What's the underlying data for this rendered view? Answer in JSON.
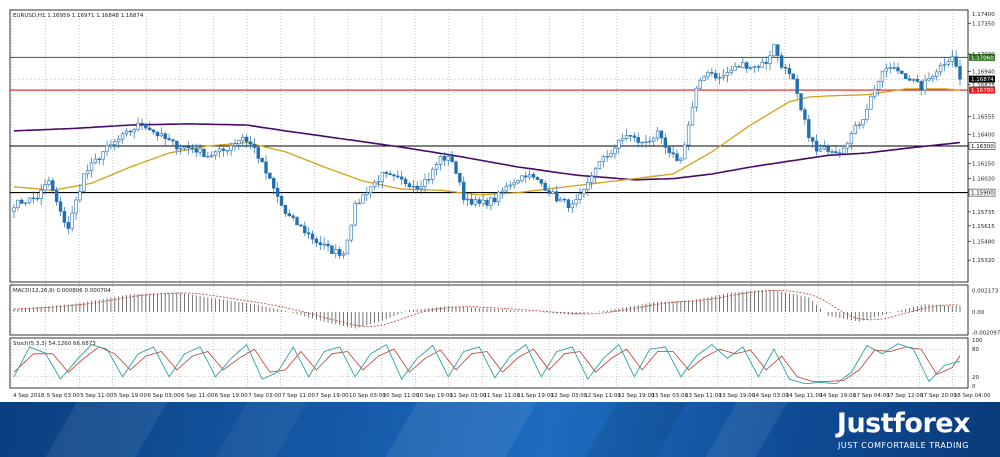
{
  "chart_data": {
    "type": "candlestick",
    "header": "EURUSD,H1  1.16959 1.16971 1.16848 1.16874",
    "colors": {
      "bull": "#1f6fb2",
      "bear": "#1f6fb2",
      "ma_fast": "#d4a017",
      "ma_slow": "#4b0a6b",
      "line_green": "#3a7a2a",
      "line_red": "#e01b1b",
      "line_black": "#000000",
      "macd_hist": "#555555",
      "macd_signal": "#c0392b",
      "stoch_main": "#2aa39a",
      "stoch_signal": "#c0392b"
    },
    "ylim": [
      1.1515,
      1.1745
    ],
    "price_ticks": [
      "1.17350",
      "1.17090",
      "1.16940",
      "1.16825",
      "1.16555",
      "1.16400",
      "1.16150",
      "1.16020",
      "1.15735",
      "1.15615",
      "1.15480",
      "1.15320"
    ],
    "levels": [
      {
        "name": "resistance-green",
        "value": 1.1706,
        "label": "1.17060",
        "color": "#3a7a2a"
      },
      {
        "name": "resistance-red",
        "value": 1.1678,
        "label": "1.16780",
        "color": "#e01b1b"
      },
      {
        "name": "support-black-1",
        "value": 1.163,
        "label": "1.16300",
        "color": "#000000"
      },
      {
        "name": "support-black-2",
        "value": 1.159,
        "label": "1.15900",
        "color": "#000000"
      }
    ],
    "current_price": {
      "value": 1.16874,
      "label": "1.16874"
    },
    "top_label": "1.17400",
    "x_labels": [
      "4 Sep 2018",
      "5 Sep 03:00",
      "5 Sep 11:00",
      "5 Sep 19:00",
      "6 Sep 03:00",
      "6 Sep 11:00",
      "6 Sep 19:00",
      "7 Sep 03:00",
      "7 Sep 11:00",
      "7 Sep 19:00",
      "10 Sep 03:00",
      "10 Sep 11:00",
      "10 Sep 19:00",
      "11 Sep 03:00",
      "11 Sep 11:00",
      "11 Sep 19:00",
      "12 Sep 03:00",
      "12 Sep 11:00",
      "12 Sep 19:00",
      "13 Sep 03:00",
      "13 Sep 11:00",
      "13 Sep 19:00",
      "14 Sep 03:00",
      "14 Sep 11:00",
      "14 Sep 19:00",
      "17 Sep 04:00",
      "17 Sep 12:00",
      "17 Sep 20:00",
      "18 Sep 04:00"
    ],
    "close_anchors": [
      [
        0,
        1.158
      ],
      [
        6,
        1.1586
      ],
      [
        9,
        1.16
      ],
      [
        12,
        1.1572
      ],
      [
        14,
        1.156
      ],
      [
        18,
        1.1605
      ],
      [
        23,
        1.1625
      ],
      [
        28,
        1.1638
      ],
      [
        33,
        1.165
      ],
      [
        37,
        1.164
      ],
      [
        42,
        1.163
      ],
      [
        46,
        1.1628
      ],
      [
        50,
        1.1622
      ],
      [
        54,
        1.1626
      ],
      [
        59,
        1.1638
      ],
      [
        62,
        1.1628
      ],
      [
        66,
        1.16
      ],
      [
        70,
        1.1572
      ],
      [
        74,
        1.156
      ],
      [
        78,
        1.1548
      ],
      [
        82,
        1.154
      ],
      [
        85,
        1.1538
      ],
      [
        88,
        1.1578
      ],
      [
        91,
        1.1592
      ],
      [
        95,
        1.1605
      ],
      [
        100,
        1.16
      ],
      [
        104,
        1.1596
      ],
      [
        107,
        1.1603
      ],
      [
        110,
        1.162
      ],
      [
        113,
        1.1618
      ],
      [
        116,
        1.1586
      ],
      [
        120,
        1.158
      ],
      [
        124,
        1.1584
      ],
      [
        128,
        1.1598
      ],
      [
        132,
        1.1606
      ],
      [
        136,
        1.1598
      ],
      [
        140,
        1.1585
      ],
      [
        144,
        1.1578
      ],
      [
        147,
        1.159
      ],
      [
        150,
        1.1612
      ],
      [
        154,
        1.1625
      ],
      [
        158,
        1.164
      ],
      [
        162,
        1.1632
      ],
      [
        166,
        1.164
      ],
      [
        169,
        1.1622
      ],
      [
        172,
        1.1618
      ],
      [
        174,
        1.1648
      ],
      [
        176,
        1.1678
      ],
      [
        179,
        1.1695
      ],
      [
        182,
        1.1688
      ],
      [
        185,
        1.1695
      ],
      [
        188,
        1.17
      ],
      [
        191,
        1.1698
      ],
      [
        194,
        1.1702
      ],
      [
        196,
        1.1716
      ],
      [
        198,
        1.17
      ],
      [
        201,
        1.1685
      ],
      [
        203,
        1.166
      ],
      [
        205,
        1.164
      ],
      [
        207,
        1.1625
      ],
      [
        210,
        1.1628
      ],
      [
        213,
        1.1626
      ],
      [
        216,
        1.164
      ],
      [
        219,
        1.1655
      ],
      [
        222,
        1.168
      ],
      [
        225,
        1.1697
      ],
      [
        228,
        1.1695
      ],
      [
        231,
        1.1688
      ],
      [
        234,
        1.168
      ],
      [
        237,
        1.1692
      ],
      [
        240,
        1.1702
      ],
      [
        242,
        1.1708
      ],
      [
        244,
        1.1687
      ]
    ],
    "ma_fast_anchors": [
      [
        0,
        1.1595
      ],
      [
        10,
        1.1592
      ],
      [
        20,
        1.1598
      ],
      [
        30,
        1.1612
      ],
      [
        40,
        1.1624
      ],
      [
        50,
        1.163
      ],
      [
        60,
        1.1633
      ],
      [
        70,
        1.1625
      ],
      [
        80,
        1.1612
      ],
      [
        90,
        1.16
      ],
      [
        100,
        1.1593
      ],
      [
        110,
        1.1592
      ],
      [
        120,
        1.1588
      ],
      [
        130,
        1.159
      ],
      [
        140,
        1.1594
      ],
      [
        150,
        1.1598
      ],
      [
        160,
        1.1602
      ],
      [
        170,
        1.1606
      ],
      [
        180,
        1.1625
      ],
      [
        190,
        1.1648
      ],
      [
        200,
        1.1668
      ],
      [
        205,
        1.1672
      ],
      [
        210,
        1.1673
      ],
      [
        220,
        1.1674
      ],
      [
        230,
        1.1679
      ],
      [
        240,
        1.1679
      ],
      [
        244,
        1.1678
      ]
    ],
    "ma_slow_anchors": [
      [
        0,
        1.1643
      ],
      [
        15,
        1.1645
      ],
      [
        30,
        1.1648
      ],
      [
        45,
        1.1649
      ],
      [
        60,
        1.1648
      ],
      [
        70,
        1.1643
      ],
      [
        85,
        1.1636
      ],
      [
        100,
        1.1629
      ],
      [
        115,
        1.1621
      ],
      [
        130,
        1.1612
      ],
      [
        145,
        1.1605
      ],
      [
        160,
        1.1601
      ],
      [
        170,
        1.1602
      ],
      [
        180,
        1.1606
      ],
      [
        190,
        1.1612
      ],
      [
        200,
        1.1617
      ],
      [
        210,
        1.1622
      ],
      [
        220,
        1.1624
      ],
      [
        230,
        1.1628
      ],
      [
        244,
        1.1633
      ]
    ],
    "macd": {
      "label": "MACD(12,26,9) 0.000806 0.000704",
      "ylim": [
        -0.00215,
        0.00245
      ],
      "ticks": [
        "0.002173",
        "0.00",
        "-0.002097"
      ],
      "hist_anchors": [
        [
          0,
          0.0003
        ],
        [
          15,
          0.0008
        ],
        [
          30,
          0.0018
        ],
        [
          42,
          0.002
        ],
        [
          55,
          0.0012
        ],
        [
          62,
          0.0008
        ],
        [
          70,
          0.0001
        ],
        [
          80,
          -0.001
        ],
        [
          88,
          -0.0017
        ],
        [
          95,
          -0.0009
        ],
        [
          102,
          0.0002
        ],
        [
          112,
          0.0006
        ],
        [
          125,
          0.0003
        ],
        [
          135,
          0.0
        ],
        [
          145,
          -0.0003
        ],
        [
          155,
          0.0003
        ],
        [
          165,
          0.001
        ],
        [
          175,
          0.0012
        ],
        [
          185,
          0.002
        ],
        [
          195,
          0.0023
        ],
        [
          205,
          0.0015
        ],
        [
          210,
          -0.0004
        ],
        [
          218,
          -0.001
        ],
        [
          225,
          -0.0002
        ],
        [
          235,
          0.0008
        ],
        [
          244,
          0.0006
        ]
      ]
    },
    "stoch": {
      "label": "Stoch(5,3,3) 54.1260 66.6873",
      "ylim": [
        0,
        100
      ],
      "ticks": [
        "100",
        "80",
        "20",
        "0"
      ],
      "main_anchors": [
        [
          0,
          20
        ],
        [
          4,
          85
        ],
        [
          8,
          72
        ],
        [
          12,
          15
        ],
        [
          16,
          55
        ],
        [
          20,
          90
        ],
        [
          24,
          80
        ],
        [
          28,
          20
        ],
        [
          32,
          70
        ],
        [
          36,
          85
        ],
        [
          40,
          20
        ],
        [
          44,
          70
        ],
        [
          48,
          85
        ],
        [
          52,
          20
        ],
        [
          56,
          60
        ],
        [
          60,
          90
        ],
        [
          64,
          15
        ],
        [
          68,
          30
        ],
        [
          72,
          85
        ],
        [
          76,
          20
        ],
        [
          80,
          75
        ],
        [
          84,
          85
        ],
        [
          88,
          20
        ],
        [
          92,
          70
        ],
        [
          96,
          90
        ],
        [
          100,
          15
        ],
        [
          104,
          60
        ],
        [
          108,
          88
        ],
        [
          112,
          20
        ],
        [
          116,
          75
        ],
        [
          120,
          85
        ],
        [
          124,
          18
        ],
        [
          128,
          65
        ],
        [
          132,
          90
        ],
        [
          136,
          20
        ],
        [
          140,
          75
        ],
        [
          144,
          85
        ],
        [
          148,
          15
        ],
        [
          152,
          60
        ],
        [
          156,
          90
        ],
        [
          160,
          20
        ],
        [
          164,
          80
        ],
        [
          168,
          85
        ],
        [
          172,
          20
        ],
        [
          176,
          65
        ],
        [
          180,
          90
        ],
        [
          184,
          60
        ],
        [
          188,
          85
        ],
        [
          192,
          20
        ],
        [
          196,
          80
        ],
        [
          200,
          15
        ],
        [
          204,
          5
        ],
        [
          208,
          8
        ],
        [
          212,
          5
        ],
        [
          216,
          30
        ],
        [
          220,
          88
        ],
        [
          224,
          70
        ],
        [
          228,
          92
        ],
        [
          232,
          80
        ],
        [
          236,
          10
        ],
        [
          240,
          45
        ],
        [
          244,
          54
        ]
      ],
      "signal_anchors": [
        [
          0,
          30
        ],
        [
          5,
          70
        ],
        [
          10,
          70
        ],
        [
          14,
          30
        ],
        [
          18,
          60
        ],
        [
          22,
          85
        ],
        [
          26,
          70
        ],
        [
          30,
          35
        ],
        [
          34,
          65
        ],
        [
          38,
          75
        ],
        [
          42,
          35
        ],
        [
          46,
          65
        ],
        [
          50,
          75
        ],
        [
          54,
          35
        ],
        [
          58,
          60
        ],
        [
          62,
          80
        ],
        [
          66,
          30
        ],
        [
          70,
          35
        ],
        [
          74,
          75
        ],
        [
          78,
          35
        ],
        [
          82,
          70
        ],
        [
          86,
          75
        ],
        [
          90,
          35
        ],
        [
          94,
          65
        ],
        [
          98,
          80
        ],
        [
          102,
          30
        ],
        [
          106,
          60
        ],
        [
          110,
          78
        ],
        [
          114,
          35
        ],
        [
          118,
          70
        ],
        [
          122,
          75
        ],
        [
          126,
          30
        ],
        [
          130,
          62
        ],
        [
          134,
          80
        ],
        [
          138,
          35
        ],
        [
          142,
          70
        ],
        [
          146,
          75
        ],
        [
          150,
          30
        ],
        [
          154,
          60
        ],
        [
          158,
          80
        ],
        [
          162,
          35
        ],
        [
          166,
          75
        ],
        [
          170,
          75
        ],
        [
          174,
          35
        ],
        [
          178,
          62
        ],
        [
          182,
          80
        ],
        [
          186,
          70
        ],
        [
          190,
          78
        ],
        [
          194,
          35
        ],
        [
          198,
          65
        ],
        [
          202,
          20
        ],
        [
          206,
          10
        ],
        [
          210,
          10
        ],
        [
          214,
          12
        ],
        [
          218,
          35
        ],
        [
          222,
          78
        ],
        [
          226,
          75
        ],
        [
          230,
          85
        ],
        [
          234,
          80
        ],
        [
          238,
          25
        ],
        [
          242,
          40
        ],
        [
          244,
          66
        ]
      ]
    }
  },
  "brand": {
    "name": "Justforex",
    "tagline": "JUST COMFORTABLE TRADING"
  }
}
